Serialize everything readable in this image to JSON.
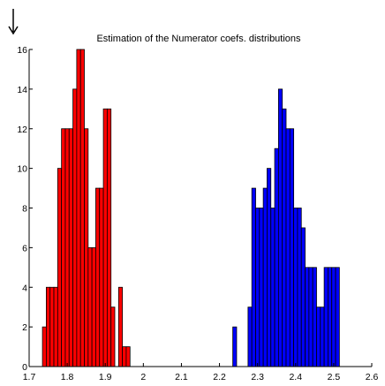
{
  "chart_data": {
    "type": "bar",
    "title": "Estimation of the Numerator coefs. distributions",
    "xlabel": "",
    "ylabel": "",
    "xlim": [
      1.7,
      2.6
    ],
    "ylim": [
      0,
      16
    ],
    "grid": false,
    "legend": "none",
    "bin_width": 0.01,
    "xticks": [
      1.7,
      1.8,
      1.9,
      2,
      2.1,
      2.2,
      2.3,
      2.4,
      2.5,
      2.6
    ],
    "xtick_labels": [
      "1.7",
      "1.8",
      "1.9",
      "2",
      "2.1",
      "2.2",
      "2.3",
      "2.4",
      "2.5",
      "2.6"
    ],
    "yticks": [
      0,
      2,
      4,
      6,
      8,
      10,
      12,
      14,
      16
    ],
    "ytick_labels": [
      "0",
      "2",
      "4",
      "6",
      "8",
      "10",
      "12",
      "14",
      "16"
    ],
    "series": [
      {
        "color": "#ff0000",
        "x": [
          1.74,
          1.75,
          1.76,
          1.77,
          1.78,
          1.79,
          1.8,
          1.81,
          1.82,
          1.83,
          1.84,
          1.85,
          1.86,
          1.87,
          1.88,
          1.89,
          1.9,
          1.91,
          1.92,
          1.93,
          1.94,
          1.95,
          1.96,
          1.97,
          1.98,
          1.99,
          2.0,
          2.01,
          2.02,
          2.03
        ],
        "values": [
          2,
          4,
          4,
          4,
          10,
          12,
          12,
          12,
          14,
          16,
          16,
          12,
          6,
          6,
          9,
          9,
          13,
          13,
          3,
          0,
          4,
          1,
          1,
          0,
          0,
          0,
          0,
          0,
          0,
          0
        ]
      },
      {
        "color": "#0000ff",
        "x": [
          2.24,
          2.28,
          2.29,
          2.3,
          2.31,
          2.32,
          2.33,
          2.34,
          2.35,
          2.36,
          2.37,
          2.38,
          2.39,
          2.4,
          2.41,
          2.42,
          2.43,
          2.44,
          2.45,
          2.46,
          2.47,
          2.48,
          2.49,
          2.5,
          2.51
        ],
        "values": [
          2,
          3,
          9,
          8,
          8,
          9,
          10,
          8,
          11,
          14,
          13,
          12,
          12,
          8,
          8,
          7,
          5,
          5,
          5,
          3,
          3,
          5,
          5,
          5,
          5
        ]
      }
    ]
  }
}
